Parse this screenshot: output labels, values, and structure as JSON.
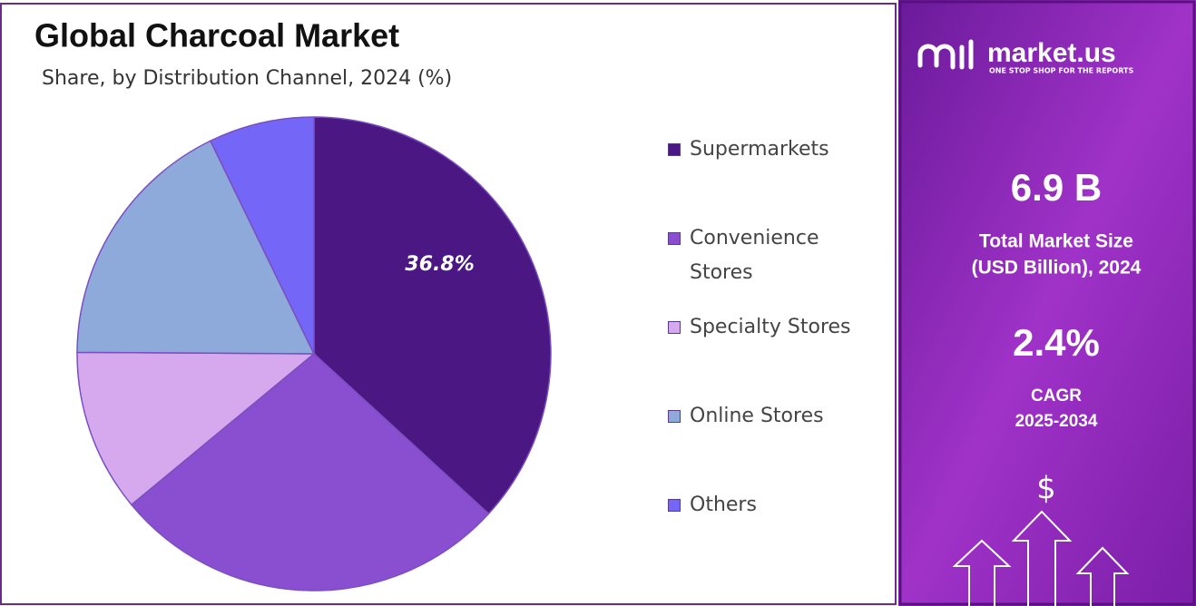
{
  "chart_data": {
    "type": "pie",
    "title": "Global Charcoal Market",
    "subtitle": "Share, by Distribution Channel, 2024 (%)",
    "categories": [
      "Supermarkets",
      "Convenience Stores",
      "Specialty Stores",
      "Online Stores",
      "Others"
    ],
    "values": [
      36.8,
      27.2,
      11.1,
      17.7,
      7.2
    ],
    "value_labels": [
      "36.8%",
      null,
      null,
      null,
      null
    ],
    "colors": [
      "#4b1782",
      "#8a4fd0",
      "#d6a9ee",
      "#8eaadb",
      "#7466f7"
    ]
  },
  "sidebar": {
    "brand": "market.us",
    "tagline": "ONE STOP SHOP FOR THE REPORTS",
    "market_size": "6.9 B",
    "market_size_label": [
      "Total Market Size",
      "(USD Billion), 2024"
    ],
    "cagr": "2.4%",
    "cagr_label": [
      "CAGR",
      "2025-2034"
    ],
    "icon": "$"
  }
}
